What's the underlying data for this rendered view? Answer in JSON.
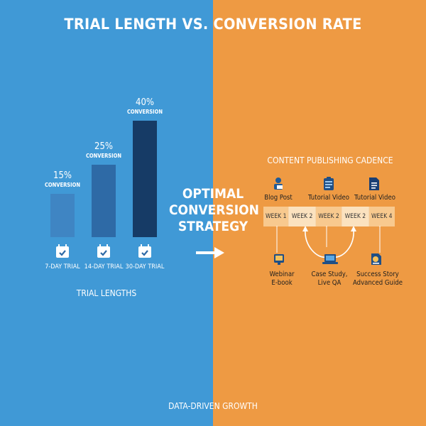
{
  "title": "TRIAL LENGTH VS. CONVERSION RATE",
  "colors": {
    "left_bg": "#4099d6",
    "right_bg": "#ee9a43",
    "bar_light": "#3f85c3",
    "bar_mid": "#2e6aa6",
    "bar_dark": "#163b66"
  },
  "trials": {
    "items": [
      {
        "percent": "15%",
        "sub": "CONVERSION",
        "label": "7-DAY TRIAL",
        "icon": "calendar-check-icon"
      },
      {
        "percent": "25%",
        "sub": "CONVERSION",
        "label": "14-DAY TRIAL",
        "icon": "calendar-check-icon"
      },
      {
        "percent": "40%",
        "sub": "CONVERSION",
        "label": "30-DAY TRIAL",
        "icon": "calendar-check-icon"
      }
    ],
    "values": [
      15,
      25,
      40
    ],
    "caption": "TRIAL LENGTHS"
  },
  "center": {
    "line1": "OPTIMAL",
    "line2": "CONVERSION",
    "line3": "STRATEGY",
    "arrow_icon": "arrow-right-icon"
  },
  "cadence": {
    "title": "CONTENT PUBLISHING CADENCE",
    "top_items": [
      {
        "label": "Blog Post",
        "icon": "person-writing-icon"
      },
      {
        "label": "Tutorial Video",
        "icon": "clipboard-video-icon"
      },
      {
        "label": "Tutorial Video",
        "icon": "document-icon"
      }
    ],
    "weeks": [
      "WEEK 1",
      "WEEK 2",
      "WEEK 2",
      "WEEK 2",
      "WEEK 4"
    ],
    "bottom_items": [
      {
        "line1": "Webinar",
        "line2": "E-book",
        "icon": "webinar-icon"
      },
      {
        "line1": "Case Study,",
        "line2": "Live QA",
        "icon": "laptop-icon"
      },
      {
        "line1": "Success Story",
        "line2": "Advanced Guide",
        "icon": "guide-icon"
      }
    ]
  },
  "footer": "DATA-DRIVEN GROWTH"
}
